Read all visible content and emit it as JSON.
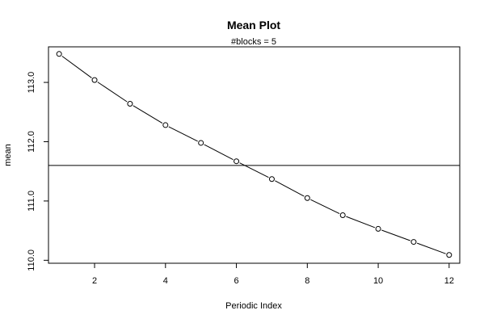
{
  "chart_data": {
    "type": "line",
    "title": "Mean Plot",
    "subtitle": "#blocks =  5",
    "xlabel": "Periodic Index",
    "ylabel": "mean",
    "xlim": [
      0.7,
      12.3
    ],
    "ylim": [
      109.95,
      113.6
    ],
    "xticks": [
      2,
      4,
      6,
      8,
      10,
      12
    ],
    "yticks": [
      110.0,
      111.0,
      112.0,
      113.0
    ],
    "ytick_labels": [
      "110.0",
      "111.0",
      "112.0",
      "113.0"
    ],
    "x": [
      1,
      2,
      3,
      4,
      5,
      6,
      7,
      8,
      9,
      10,
      11,
      12
    ],
    "series": [
      {
        "values": [
          113.48,
          113.04,
          112.64,
          112.28,
          111.98,
          111.67,
          111.37,
          111.05,
          110.76,
          110.53,
          110.31,
          110.09
        ]
      }
    ],
    "reference_line": {
      "y": 111.6
    },
    "grid": false,
    "point_marker": "open-circle",
    "colors": {
      "line": "#000000",
      "background": "#ffffff"
    }
  }
}
